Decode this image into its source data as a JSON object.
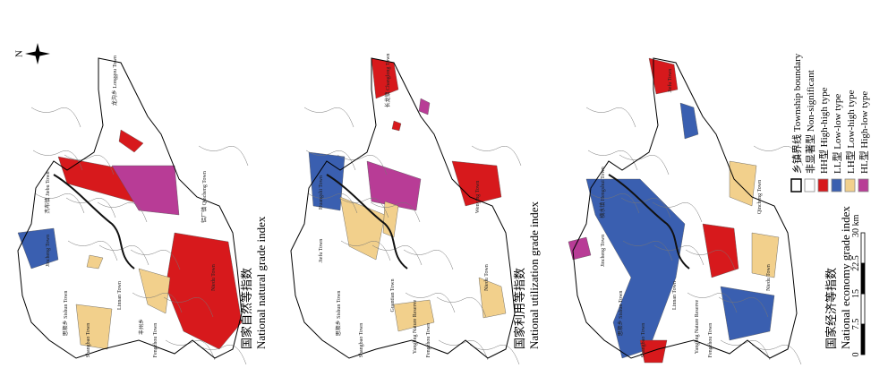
{
  "north": "N",
  "panels": [
    {
      "caption_zh": "国家自然等指数",
      "caption_en": "National natural grade index",
      "towns": [
        "龙沟乡 Longgou Town",
        "杰布镇 Jiebu Town",
        "Jincheng Town",
        "思顺乡 Sishun Town",
        "Shangbao Town",
        "Fengzhou Town",
        "Linnan Town",
        "铝厂镇 Qincheng Town",
        "Niedu Town",
        "丰州乡"
      ]
    },
    {
      "caption_zh": "国家利用等指数",
      "caption_en": "National utilization grade index",
      "towns": [
        "长龙镇 Changlong Town",
        "Huangshi Town",
        "Jiefu Town",
        "思顺乡 Sishun Town",
        "Shangbao Town",
        "Fengzhou Town",
        "Guantian Town",
        "Wenying Town",
        "Niedu Town",
        "Yangling Nature Reserve"
      ]
    },
    {
      "caption_zh": "国家经济等指数",
      "caption_en": "National economy grade index",
      "towns": [
        "Jiefu Town",
        "横水镇 Hengshui Town",
        "Jincheng Town",
        "思顺乡 Sishun Town",
        "Shangbao Town",
        "Fengzhou Town",
        "Linnan Town",
        "Qincheng Town",
        "Niedu Town",
        "Yangling Nature Reserve"
      ]
    }
  ],
  "legend": {
    "items": [
      {
        "label": "乡镇界线 Township boundary",
        "color": "#ffffff"
      },
      {
        "label": "非显著型 Non-significant",
        "color": "#ffffff"
      },
      {
        "label": "HH型 High-high type",
        "color": "#d7191c"
      },
      {
        "label": "LL型 Low-low type",
        "color": "#3a5fb0"
      },
      {
        "label": "LH型 Low-high type",
        "color": "#f2d08c"
      },
      {
        "label": "HL型 High-low type",
        "color": "#b83c96"
      }
    ]
  },
  "scale": {
    "ticks": [
      "0",
      "7.5",
      "15",
      "22.5",
      "30"
    ],
    "unit": "km"
  }
}
